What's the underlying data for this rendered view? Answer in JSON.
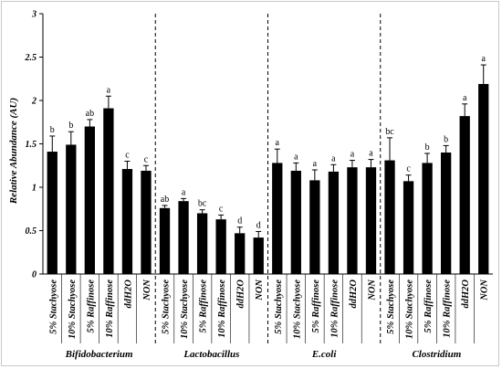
{
  "chart_data": {
    "type": "bar",
    "title": "",
    "ylabel": "Relative Abundance (AU)",
    "xlabel": "",
    "ylim": [
      0,
      3
    ],
    "yticks": [
      "0",
      "0.5",
      "1",
      "1.5",
      "2",
      "2.5",
      "3"
    ],
    "grid": false,
    "bar_color": "#000000",
    "groups": [
      {
        "name": "Bifidobacterium",
        "categories": [
          "5% Stachyose",
          "10% Stachyose",
          "5% Raffinose",
          "10% Raffinose",
          "ddH2O",
          "NON"
        ],
        "values": [
          1.41,
          1.49,
          1.7,
          1.91,
          1.21,
          1.19
        ],
        "errors": [
          0.18,
          0.15,
          0.08,
          0.14,
          0.09,
          0.06
        ],
        "letters": [
          "b",
          "b",
          "ab",
          "a",
          "c",
          "c"
        ]
      },
      {
        "name": "Lactobacillus",
        "categories": [
          "5% Stachyose",
          "10% Stachyose",
          "5% Raffinose",
          "10% Raffinose",
          "ddH2O",
          "NON"
        ],
        "values": [
          0.76,
          0.84,
          0.7,
          0.63,
          0.47,
          0.42
        ],
        "errors": [
          0.03,
          0.03,
          0.04,
          0.05,
          0.07,
          0.07
        ],
        "letters": [
          "ab",
          "a",
          "bc",
          "c",
          "d",
          "d"
        ]
      },
      {
        "name": "E.coli",
        "categories": [
          "5% Stachyose",
          "10% Stachyose",
          "5% Raffinose",
          "10% Raffinose",
          "ddH2O",
          "NON"
        ],
        "values": [
          1.28,
          1.19,
          1.08,
          1.18,
          1.23,
          1.23
        ],
        "errors": [
          0.16,
          0.09,
          0.12,
          0.08,
          0.08,
          0.09
        ],
        "letters": [
          "a",
          "a",
          "a",
          "a",
          "a",
          "a"
        ]
      },
      {
        "name": "Clostridium",
        "categories": [
          "5% Stachyose",
          "10% Stachyose",
          "5% Raffinose",
          "10% Raffinose",
          "ddH2O",
          "NON"
        ],
        "values": [
          1.31,
          1.07,
          1.28,
          1.4,
          1.82,
          2.19
        ],
        "errors": [
          0.26,
          0.07,
          0.11,
          0.08,
          0.14,
          0.22
        ],
        "letters": [
          "bc",
          "c",
          "b",
          "b",
          "a",
          "a"
        ]
      }
    ]
  }
}
